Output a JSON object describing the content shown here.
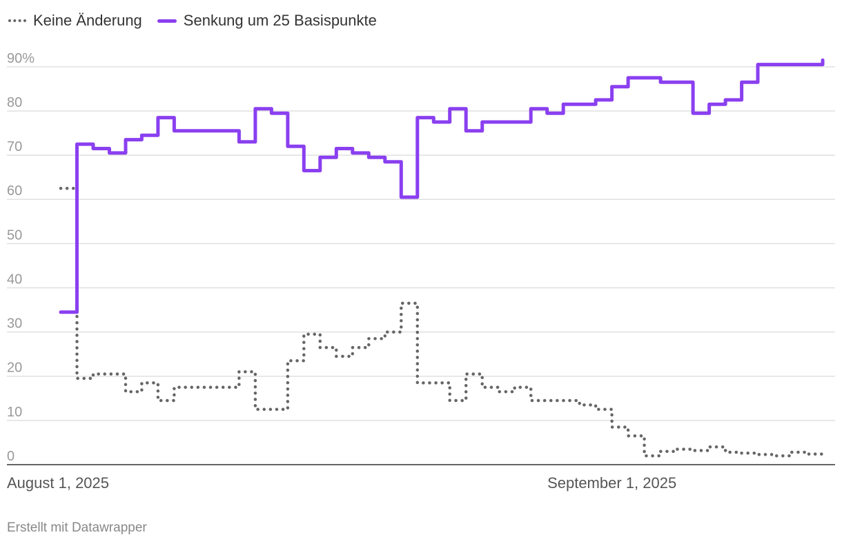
{
  "legend": {
    "series_0_label": "Keine Änderung",
    "series_1_label": "Senkung um 25 Basispunkte"
  },
  "credit": "Erstellt mit Datawrapper",
  "colors": {
    "keine_aenderung": "#666666",
    "senkung_25bp": "#8a3ff0",
    "grid": "#e0e0e0",
    "axis": "#333333"
  },
  "chart_data": {
    "type": "line",
    "subtype": "step",
    "ylim": [
      0,
      92
    ],
    "yticks": [
      0,
      10,
      20,
      30,
      40,
      50,
      60,
      70,
      80,
      90
    ],
    "ytick_labels": [
      "0",
      "10",
      "20",
      "30",
      "40",
      "50",
      "60",
      "70",
      "80",
      "90%"
    ],
    "xlim": [
      "2025-07-29",
      "2025-09-14"
    ],
    "xticks": [
      "2025-08-01",
      "2025-09-01"
    ],
    "xtick_labels": [
      "August 1, 2025",
      "September 1, 2025"
    ],
    "grid": true,
    "legend_position": "top-left",
    "series": [
      {
        "name": "Keine Änderung",
        "style": "dotted",
        "x": [
          "2025-07-29",
          "2025-07-30",
          "2025-07-31",
          "2025-08-01",
          "2025-08-02",
          "2025-08-03",
          "2025-08-04",
          "2025-08-05",
          "2025-08-06",
          "2025-08-07",
          "2025-08-08",
          "2025-08-09",
          "2025-08-10",
          "2025-08-11",
          "2025-08-12",
          "2025-08-13",
          "2025-08-14",
          "2025-08-15",
          "2025-08-16",
          "2025-08-17",
          "2025-08-18",
          "2025-08-19",
          "2025-08-20",
          "2025-08-21",
          "2025-08-22",
          "2025-08-23",
          "2025-08-24",
          "2025-08-25",
          "2025-08-26",
          "2025-08-27",
          "2025-08-28",
          "2025-08-29",
          "2025-08-30",
          "2025-08-31",
          "2025-09-01",
          "2025-09-02",
          "2025-09-03",
          "2025-09-04",
          "2025-09-05",
          "2025-09-06",
          "2025-09-07",
          "2025-09-08",
          "2025-09-09",
          "2025-09-10",
          "2025-09-11",
          "2025-09-12",
          "2025-09-13",
          "2025-09-14"
        ],
        "y": [
          62.5,
          19.5,
          20.5,
          20.5,
          16.5,
          18.5,
          14.5,
          17.5,
          17.5,
          17.5,
          17.5,
          21,
          12.5,
          12.5,
          23.5,
          29.5,
          26.5,
          24.5,
          26.5,
          28.5,
          30,
          36.5,
          18.5,
          18.5,
          14.5,
          20.5,
          17.5,
          16.5,
          17.5,
          14.5,
          14.5,
          14.5,
          13.5,
          12.5,
          8.5,
          6.5,
          2,
          3,
          3.5,
          3.2,
          4,
          2.8,
          2.6,
          2.3,
          2,
          2.8,
          2.4,
          2.4
        ]
      },
      {
        "name": "Senkung um 25 Basispunkte",
        "style": "solid",
        "x": [
          "2025-07-29",
          "2025-07-30",
          "2025-07-31",
          "2025-08-01",
          "2025-08-02",
          "2025-08-03",
          "2025-08-04",
          "2025-08-05",
          "2025-08-06",
          "2025-08-07",
          "2025-08-08",
          "2025-08-09",
          "2025-08-10",
          "2025-08-11",
          "2025-08-12",
          "2025-08-13",
          "2025-08-14",
          "2025-08-15",
          "2025-08-16",
          "2025-08-17",
          "2025-08-18",
          "2025-08-19",
          "2025-08-20",
          "2025-08-21",
          "2025-08-22",
          "2025-08-23",
          "2025-08-24",
          "2025-08-25",
          "2025-08-26",
          "2025-08-27",
          "2025-08-28",
          "2025-08-29",
          "2025-08-30",
          "2025-08-31",
          "2025-09-01",
          "2025-09-02",
          "2025-09-03",
          "2025-09-04",
          "2025-09-05",
          "2025-09-06",
          "2025-09-07",
          "2025-09-08",
          "2025-09-09",
          "2025-09-10",
          "2025-09-11",
          "2025-09-12",
          "2025-09-13",
          "2025-09-14"
        ],
        "y": [
          34.5,
          72.5,
          71.5,
          70.5,
          73.5,
          74.5,
          78.5,
          75.5,
          75.5,
          75.5,
          75.5,
          73,
          80.5,
          79.5,
          72,
          66.5,
          69.5,
          71.5,
          70.5,
          69.5,
          68.5,
          60.5,
          78.5,
          77.5,
          80.5,
          75.5,
          77.5,
          77.5,
          77.5,
          80.5,
          79.5,
          81.5,
          81.5,
          82.5,
          85.5,
          87.5,
          87.5,
          86.5,
          86.5,
          79.5,
          81.5,
          82.5,
          86.5,
          90.5,
          90.5,
          90.5,
          90.5,
          91.5
        ]
      }
    ]
  }
}
